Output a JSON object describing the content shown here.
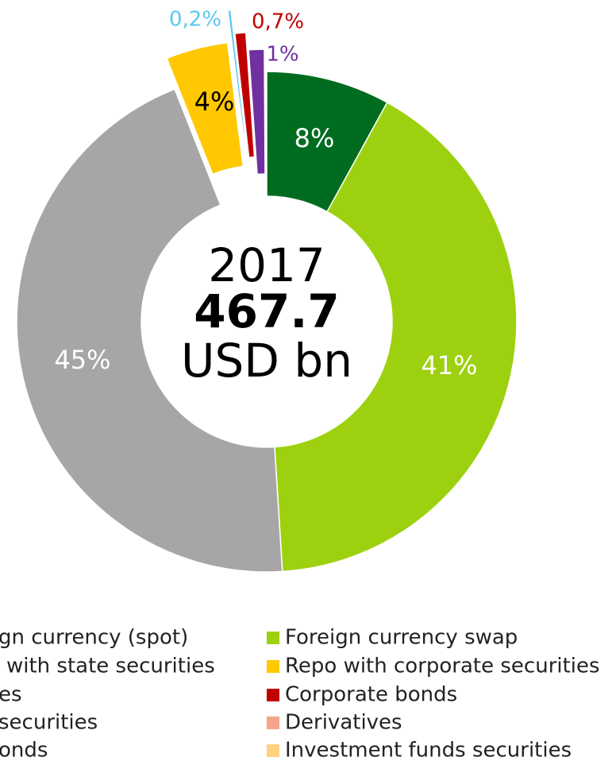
{
  "chart_data": {
    "type": "donut",
    "center_year": "2017",
    "center_total": "467.7",
    "center_unit": "USD bn",
    "values": [
      8,
      41,
      45,
      4,
      0.2,
      0.7,
      1
    ],
    "value_labels": [
      "8%",
      "41%",
      "45%",
      "4%",
      "0,2%",
      "0,7%",
      "1%"
    ],
    "colors": [
      "#006c1f",
      "#9dd10f",
      "#a6a6a6",
      "#ffc800",
      "#5bc8f0",
      "#c00000",
      "#7030a0"
    ],
    "legend_left": [
      "gn currency (spot)",
      "with state securities",
      "es",
      "securities",
      "onds"
    ],
    "legend_right": [
      {
        "name": "Foreign currency swap",
        "color": "#9dd10f"
      },
      {
        "name": "Repo with corporate securities",
        "color": "#ffc800"
      },
      {
        "name": "Corporate bonds",
        "color": "#c00000"
      },
      {
        "name": "Derivatives",
        "color": "#f4a58a"
      },
      {
        "name": "Investment funds securities",
        "color": "#ffd280"
      }
    ]
  }
}
